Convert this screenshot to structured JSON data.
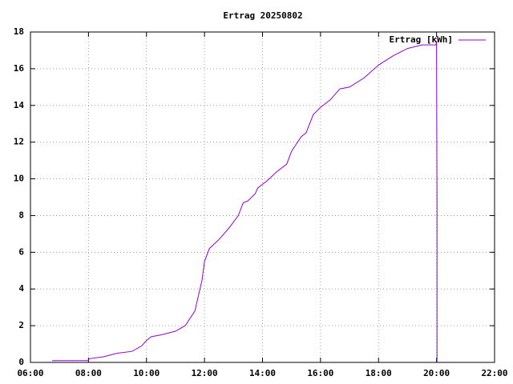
{
  "chart_data": {
    "type": "line",
    "title": "Ertrag 20250802",
    "x": [
      "06:45",
      "08:00",
      "08:01",
      "08:30",
      "09:00",
      "09:30",
      "09:50",
      "10:00",
      "10:10",
      "10:30",
      "11:00",
      "11:20",
      "11:40",
      "11:55",
      "12:00",
      "12:10",
      "12:30",
      "12:50",
      "13:10",
      "13:20",
      "13:30",
      "13:45",
      "13:50",
      "14:10",
      "14:30",
      "14:50",
      "15:00",
      "15:20",
      "15:30",
      "15:45",
      "16:00",
      "16:20",
      "16:40",
      "17:00",
      "17:30",
      "18:00",
      "18:30",
      "19:00",
      "19:30",
      "19:59",
      "20:00",
      "20:01",
      "20:01"
    ],
    "series": [
      {
        "name": "Ertrag [kWh]",
        "color": "#9400d3",
        "values": [
          0.1,
          0.1,
          0.2,
          0.3,
          0.5,
          0.6,
          0.9,
          1.2,
          1.4,
          1.5,
          1.7,
          2.0,
          2.8,
          4.5,
          5.5,
          6.2,
          6.7,
          7.3,
          8.0,
          8.7,
          8.8,
          9.2,
          9.5,
          9.9,
          10.4,
          10.8,
          11.5,
          12.3,
          12.5,
          13.5,
          13.9,
          14.3,
          14.9,
          15.0,
          15.5,
          16.2,
          16.7,
          17.1,
          17.3,
          17.3,
          17.5,
          8.7,
          0
        ]
      }
    ],
    "xlim": [
      "06:00",
      "22:00"
    ],
    "xticks": [
      "06:00",
      "08:00",
      "10:00",
      "12:00",
      "14:00",
      "16:00",
      "18:00",
      "20:00",
      "22:00"
    ],
    "ylim": [
      0,
      18
    ],
    "yticks": [
      0,
      2,
      4,
      6,
      8,
      10,
      12,
      14,
      16,
      18
    ],
    "grid": true,
    "legend": "top-right"
  }
}
